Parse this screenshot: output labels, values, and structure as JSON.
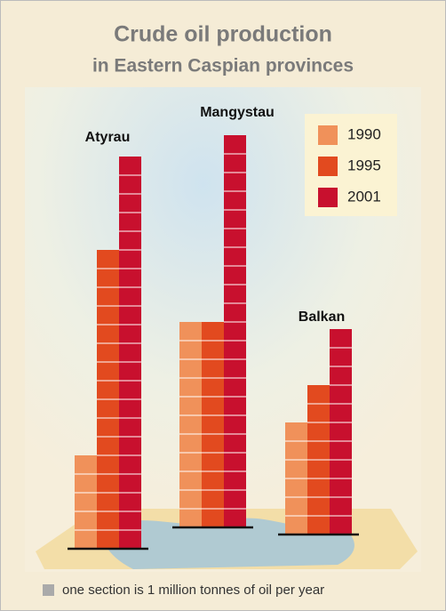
{
  "chart_data": {
    "type": "bar",
    "title": "Crude oil production",
    "subtitle": "in Eastern Caspian provinces",
    "categories": [
      "Atyrau",
      "Mangystau",
      "Balkan"
    ],
    "series": [
      {
        "name": "1990",
        "color": "#f0915a",
        "values": [
          5,
          11,
          6
        ]
      },
      {
        "name": "1995",
        "color": "#e24a1f",
        "values": [
          16,
          11,
          8
        ]
      },
      {
        "name": "2001",
        "color": "#c8102e",
        "values": [
          21,
          21,
          11
        ]
      }
    ],
    "note": "one section is 1 million tonnes of oil per year"
  }
}
